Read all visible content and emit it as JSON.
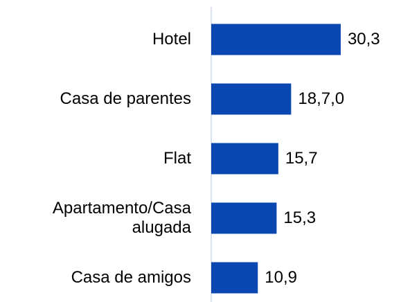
{
  "chart_data": {
    "type": "bar",
    "orientation": "horizontal",
    "categories": [
      "Hotel",
      "Casa de parentes",
      "Flat",
      "Apartamento/Casa alugada",
      "Casa de amigos"
    ],
    "values": [
      30.3,
      18.7,
      15.7,
      15.3,
      10.9
    ],
    "value_labels": [
      "30,3",
      "18,7,0",
      "15,7",
      "15,3",
      "10,9"
    ],
    "color": "#0a47b0"
  }
}
